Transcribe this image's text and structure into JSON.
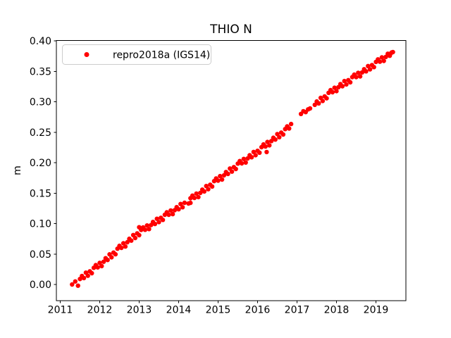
{
  "figure": {
    "title": "THIO N",
    "background_color": "#ffffff",
    "axis_color": "#000000"
  },
  "chart_data": {
    "type": "scatter",
    "title": "THIO N",
    "xlabel": "",
    "ylabel": "m",
    "grid": false,
    "legend_position": "upper left",
    "xlim": [
      2010.902,
      2019.759
    ],
    "ylim": [
      -0.0268,
      0.4005
    ],
    "x_ticks": [
      2011,
      2012,
      2013,
      2014,
      2015,
      2016,
      2017,
      2018,
      2019
    ],
    "y_ticks": [
      {
        "value": 0.0,
        "label": "0.00"
      },
      {
        "value": 0.05,
        "label": "0.05"
      },
      {
        "value": 0.1,
        "label": "0.10"
      },
      {
        "value": 0.15,
        "label": "0.15"
      },
      {
        "value": 0.2,
        "label": "0.20"
      },
      {
        "value": 0.25,
        "label": "0.25"
      },
      {
        "value": 0.3,
        "label": "0.30"
      },
      {
        "value": 0.35,
        "label": "0.35"
      },
      {
        "value": 0.4,
        "label": "0.40"
      }
    ],
    "series": [
      {
        "name": "repro2018a (IGS14)",
        "color": "#ff0000",
        "marker": "dot",
        "points": [
          [
            2011.3,
            0.0
          ],
          [
            2011.38,
            0.005
          ],
          [
            2011.45,
            -0.002
          ],
          [
            2011.5,
            0.009
          ],
          [
            2011.55,
            0.014
          ],
          [
            2011.6,
            0.0105
          ],
          [
            2011.65,
            0.0194
          ],
          [
            2011.7,
            0.0143
          ],
          [
            2011.75,
            0.0216
          ],
          [
            2011.8,
            0.0185
          ],
          [
            2011.85,
            0.0274
          ],
          [
            2011.9,
            0.0318
          ],
          [
            2011.95,
            0.0281
          ],
          [
            2012.0,
            0.0355
          ],
          [
            2012.05,
            0.0302
          ],
          [
            2012.1,
            0.0374
          ],
          [
            2012.15,
            0.0431
          ],
          [
            2012.2,
            0.0403
          ],
          [
            2012.25,
            0.0495
          ],
          [
            2012.3,
            0.0447
          ],
          [
            2012.35,
            0.0524
          ],
          [
            2012.4,
            0.0496
          ],
          [
            2012.45,
            0.0588
          ],
          [
            2012.5,
            0.0635
          ],
          [
            2012.55,
            0.0601
          ],
          [
            2012.6,
            0.0677
          ],
          [
            2012.65,
            0.0623
          ],
          [
            2012.7,
            0.0694
          ],
          [
            2012.75,
            0.075
          ],
          [
            2012.8,
            0.0721
          ],
          [
            2012.85,
            0.0812
          ],
          [
            2012.9,
            0.0763
          ],
          [
            2012.95,
            0.0839
          ],
          [
            2013.0,
            0.081
          ],
          [
            2013.0,
            0.094
          ],
          [
            2013.05,
            0.0896
          ],
          [
            2013.1,
            0.0937
          ],
          [
            2013.15,
            0.0898
          ],
          [
            2013.2,
            0.0969
          ],
          [
            2013.25,
            0.091
          ],
          [
            2013.3,
            0.0976
          ],
          [
            2013.35,
            0.1027
          ],
          [
            2013.4,
            0.0993
          ],
          [
            2013.45,
            0.1079
          ],
          [
            2013.5,
            0.1025
          ],
          [
            2013.55,
            0.1095
          ],
          [
            2013.6,
            0.106
          ],
          [
            2013.65,
            0.1145
          ],
          [
            2013.7,
            0.1185
          ],
          [
            2013.75,
            0.1145
          ],
          [
            2013.8,
            0.1215
          ],
          [
            2013.85,
            0.1155
          ],
          [
            2013.9,
            0.122
          ],
          [
            2013.95,
            0.127
          ],
          [
            2014.0,
            0.1235
          ],
          [
            2014.05,
            0.1322
          ],
          [
            2014.1,
            0.1269
          ],
          [
            2014.15,
            0.1341
          ],
          [
            2014.25,
            0.133
          ],
          [
            2014.3,
            0.1417
          ],
          [
            2014.3,
            0.134
          ],
          [
            2014.35,
            0.1459
          ],
          [
            2014.4,
            0.1421
          ],
          [
            2014.45,
            0.1493
          ],
          [
            2014.5,
            0.1435
          ],
          [
            2014.55,
            0.1504
          ],
          [
            2014.6,
            0.1558
          ],
          [
            2014.65,
            0.1527
          ],
          [
            2014.7,
            0.1616
          ],
          [
            2014.75,
            0.1565
          ],
          [
            2014.8,
            0.1639
          ],
          [
            2014.85,
            0.1608
          ],
          [
            2014.9,
            0.1697
          ],
          [
            2014.95,
            0.1741
          ],
          [
            2015.0,
            0.1705
          ],
          [
            2015.05,
            0.1779
          ],
          [
            2015.1,
            0.1723
          ],
          [
            2015.15,
            0.1792
          ],
          [
            2015.2,
            0.1846
          ],
          [
            2015.25,
            0.1815
          ],
          [
            2015.3,
            0.1904
          ],
          [
            2015.35,
            0.1853
          ],
          [
            2015.4,
            0.1927
          ],
          [
            2015.45,
            0.1896
          ],
          [
            2015.5,
            0.1985
          ],
          [
            2015.55,
            0.2027
          ],
          [
            2015.6,
            0.1989
          ],
          [
            2015.65,
            0.2061
          ],
          [
            2015.7,
            0.2003
          ],
          [
            2015.75,
            0.207
          ],
          [
            2015.8,
            0.2122
          ],
          [
            2015.85,
            0.2089
          ],
          [
            2015.9,
            0.2176
          ],
          [
            2015.95,
            0.2123
          ],
          [
            2016.0,
            0.2195
          ],
          [
            2016.05,
            0.2165
          ],
          [
            2016.1,
            0.2255
          ],
          [
            2016.15,
            0.23
          ],
          [
            2016.2,
            0.2265
          ],
          [
            2016.23,
            0.2175
          ],
          [
            2016.25,
            0.234
          ],
          [
            2016.3,
            0.2285
          ],
          [
            2016.35,
            0.2355
          ],
          [
            2016.4,
            0.241
          ],
          [
            2016.45,
            0.238
          ],
          [
            2016.5,
            0.247
          ],
          [
            2016.55,
            0.2419
          ],
          [
            2016.6,
            0.2494
          ],
          [
            2016.65,
            0.2463
          ],
          [
            2016.7,
            0.2552
          ],
          [
            2016.75,
            0.2596
          ],
          [
            2016.8,
            0.2561
          ],
          [
            2016.85,
            0.2635
          ],
          [
            2017.1,
            0.28
          ],
          [
            2017.16,
            0.2845
          ],
          [
            2017.22,
            0.283
          ],
          [
            2017.28,
            0.2875
          ],
          [
            2017.33,
            0.289
          ],
          [
            2017.45,
            0.295
          ],
          [
            2017.5,
            0.3005
          ],
          [
            2017.55,
            0.2974
          ],
          [
            2017.6,
            0.3064
          ],
          [
            2017.65,
            0.3013
          ],
          [
            2017.7,
            0.3088
          ],
          [
            2017.75,
            0.3057
          ],
          [
            2017.8,
            0.3147
          ],
          [
            2017.85,
            0.3191
          ],
          [
            2017.9,
            0.3156
          ],
          [
            2017.95,
            0.323
          ],
          [
            2018.0,
            0.3175
          ],
          [
            2018.05,
            0.324
          ],
          [
            2018.1,
            0.329
          ],
          [
            2018.15,
            0.3255
          ],
          [
            2018.2,
            0.334
          ],
          [
            2018.25,
            0.3285
          ],
          [
            2018.3,
            0.3355
          ],
          [
            2018.35,
            0.332
          ],
          [
            2018.4,
            0.3405
          ],
          [
            2018.45,
            0.3445
          ],
          [
            2018.5,
            0.3405
          ],
          [
            2018.55,
            0.3476
          ],
          [
            2018.6,
            0.3417
          ],
          [
            2018.65,
            0.3483
          ],
          [
            2018.7,
            0.3534
          ],
          [
            2018.75,
            0.35
          ],
          [
            2018.8,
            0.3586
          ],
          [
            2018.85,
            0.3532
          ],
          [
            2018.9,
            0.3603
          ],
          [
            2018.95,
            0.3569
          ],
          [
            2019.0,
            0.3655
          ],
          [
            2019.05,
            0.3696
          ],
          [
            2019.1,
            0.3658
          ],
          [
            2019.15,
            0.3729
          ],
          [
            2019.2,
            0.3671
          ],
          [
            2019.25,
            0.3737
          ],
          [
            2019.3,
            0.3789
          ],
          [
            2019.35,
            0.3755
          ],
          [
            2019.37,
            0.379
          ],
          [
            2019.4,
            0.381
          ],
          [
            2019.43,
            0.3815
          ]
        ]
      }
    ]
  }
}
